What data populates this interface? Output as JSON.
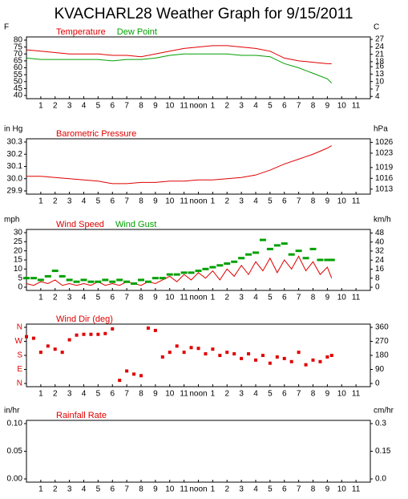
{
  "chart_data": [
    {
      "type": "line",
      "title": "KVACHARL28 Weather Graph for 9/15/2011",
      "ylabel": "F",
      "y2label": "C",
      "xlim": [
        0,
        24
      ],
      "xticks": [
        1,
        2,
        3,
        4,
        5,
        6,
        7,
        8,
        9,
        10,
        11,
        {
          "value": 12,
          "label": "noon"
        },
        {
          "value": 13,
          "label": "1"
        },
        {
          "value": 14,
          "label": "2"
        },
        {
          "value": 15,
          "label": "3"
        },
        {
          "value": 16,
          "label": "4"
        },
        {
          "value": 17,
          "label": "5"
        },
        {
          "value": 18,
          "label": "6"
        },
        {
          "value": 19,
          "label": "7"
        },
        {
          "value": 20,
          "label": "8"
        },
        {
          "value": 21,
          "label": "9"
        },
        {
          "value": 22,
          "label": "10"
        },
        {
          "value": 23,
          "label": "11"
        }
      ],
      "ylim": [
        40,
        80
      ],
      "yticks": [
        40,
        45,
        50,
        55,
        60,
        65,
        70,
        75,
        80
      ],
      "y2lim": [
        4.4,
        26.7
      ],
      "y2ticks": [
        4,
        7,
        10,
        13,
        16,
        18,
        21,
        24,
        27
      ],
      "series": [
        {
          "name": "Temperature",
          "color": "#e00000",
          "x": [
            0,
            1,
            2,
            3,
            4,
            5,
            6,
            7,
            8,
            9,
            10,
            11,
            12,
            13,
            14,
            15,
            16,
            17,
            18,
            19,
            20,
            21,
            21.3
          ],
          "values": [
            73,
            72,
            71,
            70,
            70,
            70,
            69,
            69,
            68,
            70,
            72,
            74,
            75,
            76,
            76,
            75,
            74,
            72,
            67,
            65,
            64,
            63,
            63
          ]
        },
        {
          "name": "Dew Point",
          "color": "#00a000",
          "x": [
            0,
            1,
            2,
            3,
            4,
            5,
            6,
            7,
            8,
            9,
            10,
            11,
            12,
            13,
            14,
            15,
            16,
            17,
            18,
            19,
            20,
            21,
            21.3
          ],
          "values": [
            67,
            66,
            66,
            66,
            66,
            66,
            65,
            66,
            66,
            67,
            69,
            70,
            70,
            70,
            70,
            69,
            69,
            68,
            63,
            60,
            56,
            52,
            49
          ]
        }
      ]
    },
    {
      "type": "line",
      "ylabel": "in Hg",
      "y2label": "hPa",
      "xlim": [
        0,
        24
      ],
      "xticks": [
        1,
        2,
        3,
        4,
        5,
        6,
        7,
        8,
        9,
        10,
        11,
        {
          "value": 12,
          "label": "noon"
        },
        {
          "value": 13,
          "label": "1"
        },
        {
          "value": 14,
          "label": "2"
        },
        {
          "value": 15,
          "label": "3"
        },
        {
          "value": 16,
          "label": "4"
        },
        {
          "value": 17,
          "label": "5"
        },
        {
          "value": 18,
          "label": "6"
        },
        {
          "value": 19,
          "label": "7"
        },
        {
          "value": 20,
          "label": "8"
        },
        {
          "value": 21,
          "label": "9"
        },
        {
          "value": 22,
          "label": "10"
        },
        {
          "value": 23,
          "label": "11"
        }
      ],
      "ylim": [
        29.9,
        30.3
      ],
      "yticks": [
        {
          "value": 29.9,
          "label": "29.9"
        },
        {
          "value": 30,
          "label": "30.0"
        },
        {
          "value": 30.1,
          "label": "30.1"
        },
        {
          "value": 30.2,
          "label": "30.2"
        },
        {
          "value": 30.3,
          "label": "30.3"
        }
      ],
      "y2lim": [
        1012.5,
        1026.1
      ],
      "y2ticks": [
        1013,
        1016,
        1019,
        1023,
        1026
      ],
      "series": [
        {
          "name": "Barometric Pressure",
          "color": "#e00000",
          "x": [
            0,
            1,
            2,
            3,
            4,
            5,
            6,
            7,
            8,
            9,
            10,
            11,
            12,
            13,
            14,
            15,
            16,
            17,
            18,
            19,
            20,
            21,
            21.3
          ],
          "values": [
            30.02,
            30.02,
            30.01,
            30.0,
            29.99,
            29.98,
            29.96,
            29.96,
            29.97,
            29.97,
            29.98,
            29.98,
            29.99,
            29.99,
            30.0,
            30.01,
            30.03,
            30.07,
            30.12,
            30.16,
            30.2,
            30.25,
            30.27
          ]
        }
      ]
    },
    {
      "type": "line",
      "ylabel": "mph",
      "y2label": "km/h",
      "xlim": [
        0,
        24
      ],
      "xticks": [
        1,
        2,
        3,
        4,
        5,
        6,
        7,
        8,
        9,
        10,
        11,
        {
          "value": 12,
          "label": "noon"
        },
        {
          "value": 13,
          "label": "1"
        },
        {
          "value": 14,
          "label": "2"
        },
        {
          "value": 15,
          "label": "3"
        },
        {
          "value": 16,
          "label": "4"
        },
        {
          "value": 17,
          "label": "5"
        },
        {
          "value": 18,
          "label": "6"
        },
        {
          "value": 19,
          "label": "7"
        },
        {
          "value": 20,
          "label": "8"
        },
        {
          "value": 21,
          "label": "9"
        },
        {
          "value": 22,
          "label": "10"
        },
        {
          "value": 23,
          "label": "11"
        }
      ],
      "ylim": [
        0,
        30
      ],
      "yticks": [
        0,
        5,
        10,
        15,
        20,
        25,
        30
      ],
      "y2lim": [
        0,
        48.3
      ],
      "y2ticks": [
        0,
        8,
        16,
        24,
        32,
        40,
        48
      ],
      "series": [
        {
          "name": "Wind Speed",
          "color": "#e00000",
          "x": [
            0,
            0.5,
            1,
            1.5,
            2,
            2.5,
            3,
            3.5,
            4,
            4.5,
            5,
            5.5,
            6,
            6.5,
            7,
            7.5,
            8,
            8.5,
            9,
            9.5,
            10,
            10.5,
            11,
            11.5,
            12,
            12.5,
            13,
            13.5,
            14,
            14.5,
            15,
            15.5,
            16,
            16.5,
            17,
            17.5,
            18,
            18.5,
            19,
            19.5,
            20,
            20.5,
            21,
            21.3
          ],
          "values": [
            2,
            1,
            3,
            2,
            4,
            1,
            2,
            1,
            2,
            1,
            3,
            1,
            2,
            1,
            3,
            2,
            1,
            3,
            2,
            4,
            6,
            3,
            7,
            4,
            8,
            5,
            9,
            4,
            10,
            6,
            12,
            7,
            14,
            9,
            16,
            8,
            15,
            10,
            17,
            9,
            14,
            7,
            11,
            5
          ]
        },
        {
          "name": "Wind Gust",
          "color": "#00a000",
          "marker": "dash",
          "x": [
            0,
            0.5,
            1,
            1.5,
            2,
            2.5,
            3,
            3.5,
            4,
            4.5,
            5,
            5.5,
            6,
            6.5,
            7,
            7.5,
            8,
            8.5,
            9,
            9.5,
            10,
            10.5,
            11,
            11.5,
            12,
            12.5,
            13,
            13.5,
            14,
            14.5,
            15,
            15.5,
            16,
            16.5,
            17,
            17.5,
            18,
            18.5,
            19,
            19.5,
            20,
            20.5,
            21,
            21.3
          ],
          "values": [
            5,
            5,
            4,
            6,
            9,
            6,
            4,
            3,
            4,
            3,
            3,
            4,
            3,
            4,
            3,
            2,
            4,
            3,
            5,
            5,
            7,
            7,
            8,
            8,
            9,
            10,
            11,
            12,
            13,
            14,
            16,
            18,
            19,
            26,
            21,
            23,
            24,
            18,
            20,
            16,
            21,
            15,
            15,
            15
          ]
        }
      ]
    },
    {
      "type": "scatter",
      "xlim": [
        0,
        24
      ],
      "xticks": [
        1,
        2,
        3,
        4,
        5,
        6,
        7,
        8,
        9,
        10,
        11,
        {
          "value": 12,
          "label": "noon"
        },
        {
          "value": 13,
          "label": "1"
        },
        {
          "value": 14,
          "label": "2"
        },
        {
          "value": 15,
          "label": "3"
        },
        {
          "value": 16,
          "label": "4"
        },
        {
          "value": 17,
          "label": "5"
        },
        {
          "value": 18,
          "label": "6"
        },
        {
          "value": 19,
          "label": "7"
        },
        {
          "value": 20,
          "label": "8"
        },
        {
          "value": 21,
          "label": "9"
        },
        {
          "value": 22,
          "label": "10"
        },
        {
          "value": 23,
          "label": "11"
        }
      ],
      "ylim": [
        0,
        360
      ],
      "yticks": [
        {
          "value": 0,
          "label": "N"
        },
        {
          "value": 90,
          "label": "E"
        },
        {
          "value": 180,
          "label": "S"
        },
        {
          "value": 270,
          "label": "W"
        },
        {
          "value": 360,
          "label": "N"
        }
      ],
      "ytick_color": "#e00000",
      "y2lim": [
        0,
        360
      ],
      "y2ticks": [
        0,
        90,
        180,
        270,
        360
      ],
      "series": [
        {
          "name": "Wind Dir (deg)",
          "color": "#e00000",
          "x": [
            0,
            0.5,
            1,
            1.5,
            2,
            2.5,
            3,
            3.5,
            4,
            4.5,
            5,
            5.5,
            6,
            6.5,
            7,
            7.5,
            8,
            8.5,
            9,
            9.5,
            10,
            10.5,
            11,
            11.5,
            12,
            12.5,
            13,
            13.5,
            14,
            14.5,
            15,
            15.5,
            16,
            16.5,
            17,
            17.5,
            18,
            18.5,
            19,
            19.5,
            20,
            20.5,
            21,
            21.3
          ],
          "values": [
            300,
            290,
            200,
            240,
            220,
            200,
            280,
            310,
            315,
            315,
            315,
            320,
            350,
            20,
            80,
            60,
            50,
            355,
            340,
            170,
            200,
            240,
            200,
            230,
            225,
            190,
            220,
            180,
            200,
            190,
            160,
            190,
            150,
            180,
            130,
            170,
            160,
            140,
            200,
            120,
            150,
            140,
            170,
            180
          ]
        }
      ]
    },
    {
      "type": "line",
      "ylabel": "in/hr",
      "y2label": "cm/hr",
      "xlim": [
        0,
        24
      ],
      "xticks": [
        1,
        2,
        3,
        4,
        5,
        6,
        7,
        8,
        9,
        10,
        11,
        {
          "value": 12,
          "label": "noon"
        },
        {
          "value": 13,
          "label": "1"
        },
        {
          "value": 14,
          "label": "2"
        },
        {
          "value": 15,
          "label": "3"
        },
        {
          "value": 16,
          "label": "4"
        },
        {
          "value": 17,
          "label": "5"
        },
        {
          "value": 18,
          "label": "6"
        },
        {
          "value": 19,
          "label": "7"
        },
        {
          "value": 20,
          "label": "8"
        },
        {
          "value": 21,
          "label": "9"
        },
        {
          "value": 22,
          "label": "10"
        },
        {
          "value": 23,
          "label": "11"
        }
      ],
      "ylim": [
        0,
        0.1
      ],
      "yticks": [
        {
          "value": 0,
          "label": "0.00"
        },
        {
          "value": 0.05,
          "label": "0.05"
        },
        {
          "value": 0.1,
          "label": "0.10"
        }
      ],
      "y2lim": [
        0,
        0.3
      ],
      "y2ticks": [
        {
          "value": 0,
          "label": "0.0"
        },
        0.15,
        0.3
      ],
      "series": [
        {
          "name": "Rainfall Rate",
          "color": "#e00000",
          "x": [],
          "values": []
        }
      ]
    }
  ]
}
